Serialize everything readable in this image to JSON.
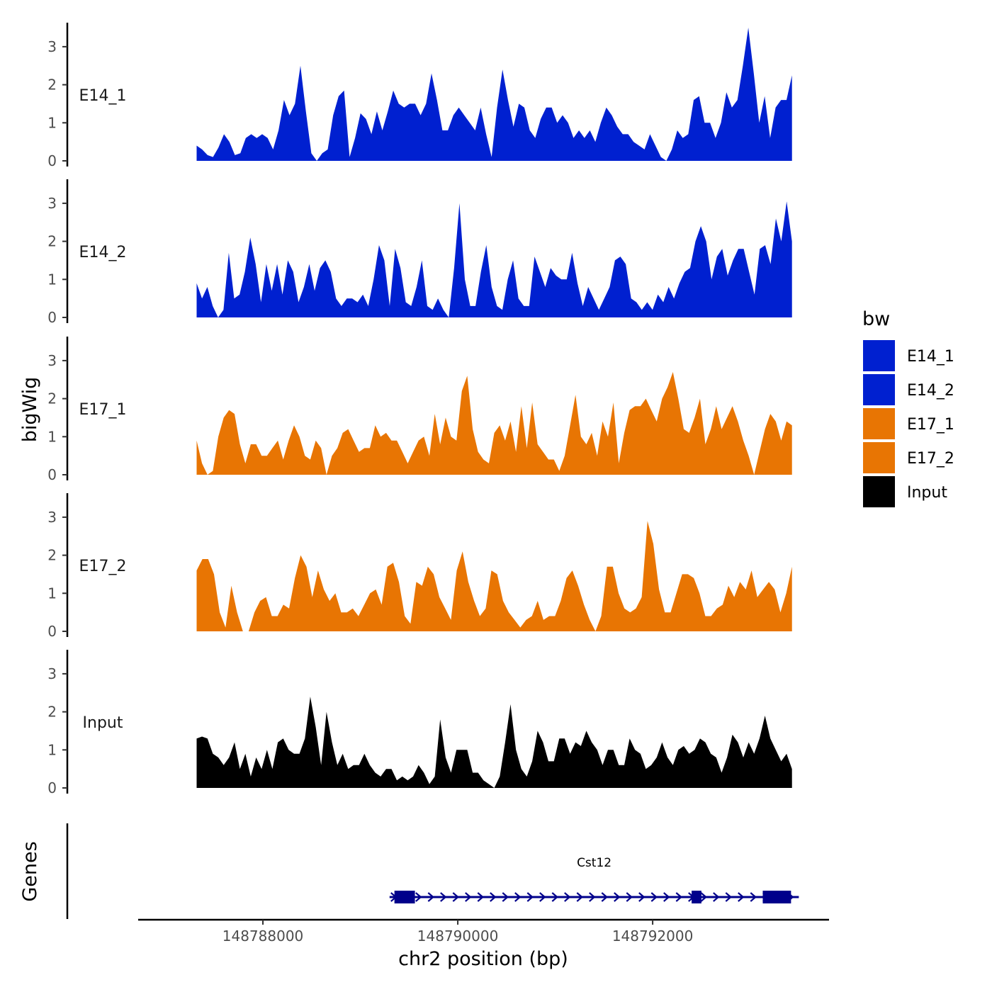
{
  "chart_data": {
    "type": "area",
    "chromosome": "chr2",
    "xlabel": "chr2 position (bp)",
    "ylabel": "bigWig",
    "genes_label": "Genes",
    "xlim": [
      148786720,
      148793810
    ],
    "x_range": [
      148787320,
      148793430
    ],
    "x_ticks": [
      148788000,
      148790000,
      148792000
    ],
    "x_tick_labels": [
      "148788000",
      "148790000",
      "148792000"
    ],
    "ylim": [
      0,
      3.6
    ],
    "y_ticks": [
      0,
      1,
      2,
      3
    ],
    "y_tick_labels": [
      "0",
      "1",
      "2",
      "3"
    ],
    "legend": {
      "title": "bw",
      "entries": [
        {
          "name": "E14_1",
          "color": "#0020D0"
        },
        {
          "name": "E14_2",
          "color": "#0020D0"
        },
        {
          "name": "E17_1",
          "color": "#E87503"
        },
        {
          "name": "E17_2",
          "color": "#E87503"
        },
        {
          "name": "Input",
          "color": "#000000"
        }
      ]
    },
    "series": [
      {
        "name": "E14_1",
        "color": "#0020D0",
        "values": [
          0.4,
          0.3,
          0.15,
          0.1,
          0.35,
          0.7,
          0.5,
          0.15,
          0.2,
          0.6,
          0.7,
          0.6,
          0.7,
          0.6,
          0.3,
          0.8,
          1.6,
          1.2,
          1.5,
          2.5,
          1.3,
          0.2,
          0,
          0.2,
          0.3,
          1.2,
          1.7,
          1.85,
          0.1,
          0.6,
          1.25,
          1.1,
          0.7,
          1.3,
          0.8,
          1.3,
          1.85,
          1.5,
          1.4,
          1.5,
          1.5,
          1.2,
          1.5,
          2.3,
          1.6,
          0.8,
          0.8,
          1.2,
          1.4,
          1.2,
          1.0,
          0.8,
          1.4,
          0.7,
          0.1,
          1.4,
          2.4,
          1.6,
          0.9,
          1.5,
          1.4,
          0.8,
          0.6,
          1.1,
          1.4,
          1.4,
          1.0,
          1.2,
          1.0,
          0.6,
          0.8,
          0.6,
          0.8,
          0.5,
          1.0,
          1.4,
          1.2,
          0.9,
          0.7,
          0.7,
          0.5,
          0.4,
          0.3,
          0.7,
          0.4,
          0.1,
          0,
          0.3,
          0.8,
          0.6,
          0.7,
          1.6,
          1.7,
          1.0,
          1.0,
          0.6,
          1.0,
          1.8,
          1.4,
          1.6,
          2.5,
          3.5,
          2.3,
          1.0,
          1.7,
          0.6,
          1.4,
          1.6,
          1.6,
          2.25
        ]
      },
      {
        "name": "E14_2",
        "color": "#0020D0",
        "values": [
          0.9,
          0.5,
          0.8,
          0.3,
          0,
          0.2,
          1.7,
          0.5,
          0.6,
          1.2,
          2.1,
          1.4,
          0.4,
          1.4,
          0.7,
          1.4,
          0.6,
          1.5,
          1.2,
          0.4,
          0.8,
          1.4,
          0.7,
          1.3,
          1.5,
          1.2,
          0.5,
          0.3,
          0.5,
          0.5,
          0.4,
          0.6,
          0.3,
          1.0,
          1.9,
          1.5,
          0.3,
          1.8,
          1.3,
          0.4,
          0.3,
          0.8,
          1.5,
          0.3,
          0.2,
          0.5,
          0.2,
          0,
          1.3,
          3.0,
          1.0,
          0.3,
          0.3,
          1.2,
          1.9,
          0.8,
          0.3,
          0.2,
          1.0,
          1.5,
          0.5,
          0.3,
          0.3,
          1.6,
          1.2,
          0.8,
          1.3,
          1.1,
          1.0,
          1.0,
          1.7,
          0.9,
          0.3,
          0.8,
          0.5,
          0.2,
          0.5,
          0.8,
          1.5,
          1.6,
          1.4,
          0.5,
          0.4,
          0.2,
          0.4,
          0.2,
          0.6,
          0.4,
          0.8,
          0.5,
          0.9,
          1.2,
          1.3,
          2.0,
          2.4,
          2.0,
          1.0,
          1.6,
          1.8,
          1.1,
          1.5,
          1.8,
          1.8,
          1.2,
          0.6,
          1.8,
          1.9,
          1.4,
          2.6,
          2.0,
          3.05,
          2.0
        ]
      },
      {
        "name": "E17_1",
        "color": "#E87503",
        "values": [
          0.9,
          0.3,
          0,
          0.1,
          1.0,
          1.5,
          1.7,
          1.6,
          0.8,
          0.3,
          0.8,
          0.8,
          0.5,
          0.5,
          0.7,
          0.9,
          0.4,
          0.9,
          1.3,
          1.0,
          0.5,
          0.4,
          0.9,
          0.7,
          0,
          0.5,
          0.7,
          1.1,
          1.2,
          0.9,
          0.6,
          0.7,
          0.7,
          1.3,
          1.0,
          1.1,
          0.9,
          0.9,
          0.6,
          0.3,
          0.6,
          0.9,
          1.0,
          0.5,
          1.6,
          0.8,
          1.5,
          1.0,
          0.9,
          2.2,
          2.6,
          1.2,
          0.6,
          0.4,
          0.3,
          1.1,
          1.3,
          0.9,
          1.4,
          0.6,
          1.8,
          0.7,
          1.9,
          0.8,
          0.6,
          0.4,
          0.4,
          0.1,
          0.5,
          1.3,
          2.1,
          1.0,
          0.8,
          1.1,
          0.5,
          1.4,
          1.0,
          1.9,
          0.3,
          1.1,
          1.7,
          1.8,
          1.8,
          2.0,
          1.7,
          1.4,
          2.0,
          2.3,
          2.7,
          2.0,
          1.2,
          1.1,
          1.5,
          2.0,
          0.8,
          1.2,
          1.8,
          1.2,
          1.5,
          1.8,
          1.4,
          0.9,
          0.5,
          0,
          0.6,
          1.2,
          1.6,
          1.4,
          0.9,
          1.4,
          1.3
        ]
      },
      {
        "name": "E17_2",
        "color": "#E87503",
        "values": [
          1.6,
          1.9,
          1.9,
          1.5,
          0.5,
          0.1,
          1.2,
          0.5,
          0,
          0,
          0.5,
          0.8,
          0.9,
          0.4,
          0.4,
          0.7,
          0.6,
          1.4,
          2.0,
          1.7,
          0.9,
          1.6,
          1.1,
          0.8,
          1.0,
          0.5,
          0.5,
          0.6,
          0.4,
          0.7,
          1.0,
          1.1,
          0.7,
          1.7,
          1.8,
          1.3,
          0.4,
          0.2,
          1.3,
          1.2,
          1.7,
          1.5,
          0.9,
          0.6,
          0.3,
          1.6,
          2.1,
          1.3,
          0.8,
          0.4,
          0.6,
          1.6,
          1.5,
          0.8,
          0.5,
          0.3,
          0.1,
          0.3,
          0.4,
          0.8,
          0.3,
          0.4,
          0.4,
          0.8,
          1.4,
          1.6,
          1.2,
          0.7,
          0.3,
          0,
          0.4,
          1.7,
          1.7,
          1.0,
          0.6,
          0.5,
          0.6,
          0.9,
          2.9,
          2.3,
          1.1,
          0.5,
          0.5,
          1.0,
          1.5,
          1.5,
          1.4,
          1.0,
          0.4,
          0.4,
          0.6,
          0.7,
          1.2,
          0.9,
          1.3,
          1.1,
          1.6,
          0.9,
          1.1,
          1.3,
          1.1,
          0.5,
          1.0,
          1.7
        ]
      },
      {
        "name": "Input",
        "color": "#000000",
        "values": [
          1.3,
          1.35,
          1.3,
          0.9,
          0.8,
          0.6,
          0.8,
          1.2,
          0.5,
          0.9,
          0.3,
          0.8,
          0.5,
          1.0,
          0.5,
          1.2,
          1.3,
          1.0,
          0.9,
          0.9,
          1.3,
          2.4,
          1.6,
          0.6,
          2.0,
          1.2,
          0.6,
          0.9,
          0.5,
          0.6,
          0.6,
          0.9,
          0.6,
          0.4,
          0.3,
          0.5,
          0.5,
          0.2,
          0.3,
          0.2,
          0.3,
          0.6,
          0.4,
          0.1,
          0.3,
          1.8,
          0.8,
          0.4,
          1.0,
          1.0,
          1.0,
          0.4,
          0.4,
          0.2,
          0.1,
          0,
          0.3,
          1.2,
          2.2,
          1.0,
          0.5,
          0.3,
          0.7,
          1.5,
          1.2,
          0.7,
          0.7,
          1.3,
          1.3,
          0.9,
          1.2,
          1.1,
          1.5,
          1.2,
          1.0,
          0.6,
          1.0,
          1.0,
          0.6,
          0.6,
          1.3,
          1.0,
          0.9,
          0.5,
          0.6,
          0.8,
          1.2,
          0.8,
          0.6,
          1.0,
          1.1,
          0.9,
          1.0,
          1.3,
          1.2,
          0.9,
          0.8,
          0.4,
          0.8,
          1.4,
          1.2,
          0.8,
          1.2,
          0.9,
          1.3,
          1.9,
          1.3,
          1.0,
          0.7,
          0.9,
          0.5
        ]
      }
    ],
    "genes": [
      {
        "name": "Cst12",
        "start": 148789300,
        "end": 148793500,
        "strand": "+",
        "exons": [
          [
            148789350,
            148789560
          ],
          [
            148792400,
            148792500
          ],
          [
            148793130,
            148793420
          ]
        ],
        "color": "#00008B"
      }
    ]
  }
}
